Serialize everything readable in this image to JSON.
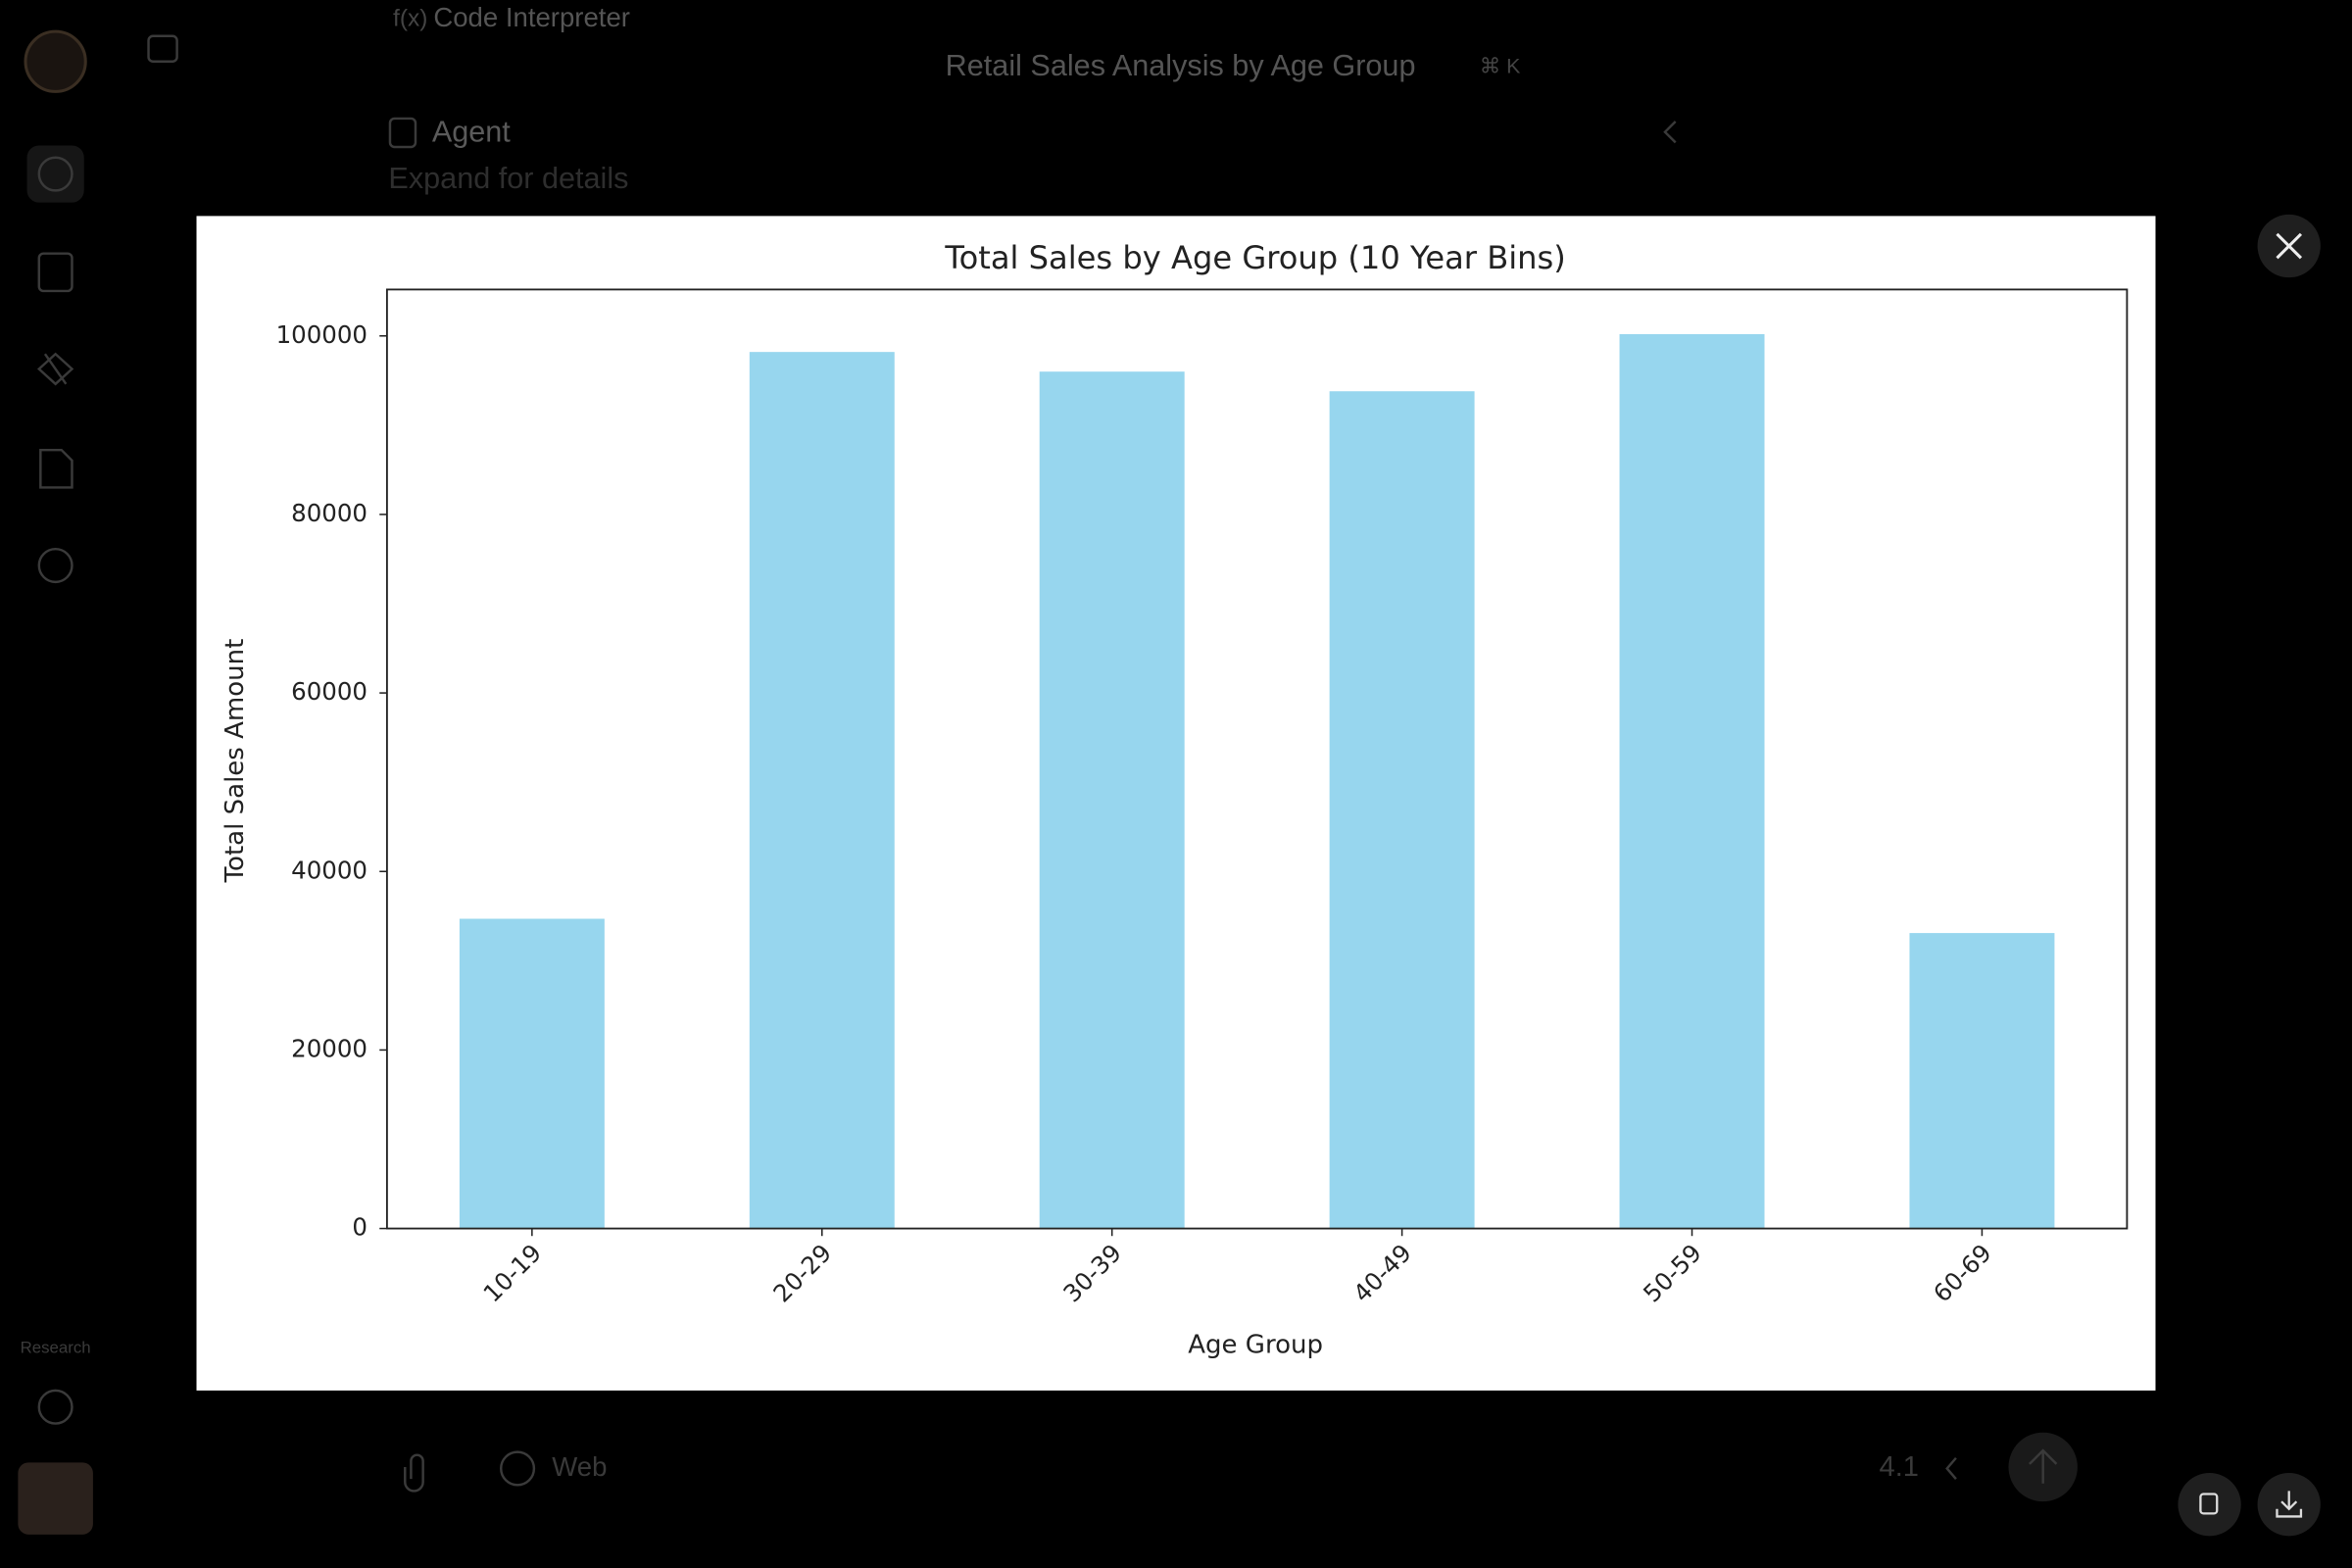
{
  "app": {
    "tool": "Code Interpreter",
    "conversation_title": "Retail Sales Analysis by Age Group",
    "shortcut": "⌘ K",
    "agent_label": "Agent",
    "agent_hint": "Expand for details",
    "sidebar_label": "Research",
    "web_toggle": "Web",
    "model_version": "4.1"
  },
  "chart_data": {
    "type": "bar",
    "title": "Total Sales by Age Group (10 Year Bins)",
    "x_label": "Age Group",
    "y_label": "Total Sales Amount",
    "categories": [
      "10-19",
      "20-29",
      "30-39",
      "40-49",
      "50-59",
      "60-69"
    ],
    "values": [
      34700,
      98200,
      96000,
      93800,
      100200,
      33100
    ],
    "color": "#97d6ee",
    "ylim": [
      0,
      105200
    ],
    "yticks": [
      0,
      20000,
      40000,
      60000,
      80000,
      100000
    ],
    "grid": false
  }
}
